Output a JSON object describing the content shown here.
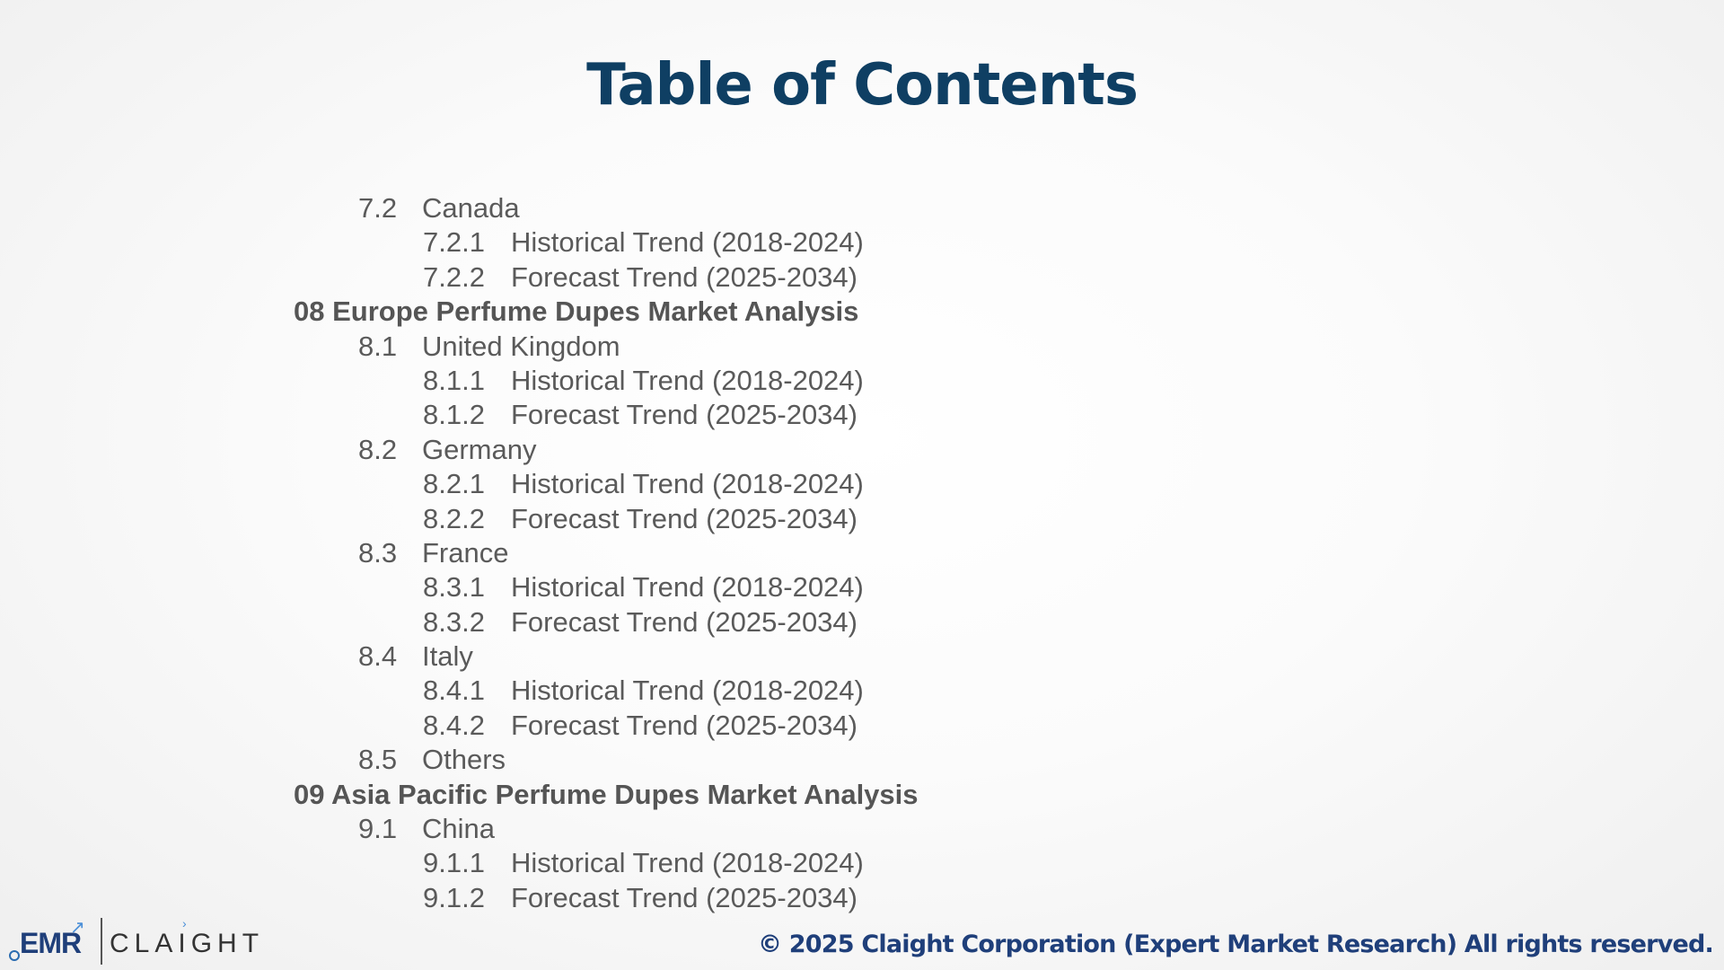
{
  "title": "Table of Contents",
  "toc": [
    {
      "num": "7.2",
      "label": "Canada"
    },
    {
      "num": "7.2.1",
      "label": "Historical Trend (2018-2024)"
    },
    {
      "num": "7.2.2",
      "label": "Forecast Trend (2025-2034)"
    },
    {
      "num": "",
      "label": "08 Europe Perfume Dupes Market Analysis"
    },
    {
      "num": "8.1",
      "label": "United Kingdom"
    },
    {
      "num": "8.1.1",
      "label": "Historical Trend (2018-2024)"
    },
    {
      "num": "8.1.2",
      "label": "Forecast Trend (2025-2034)"
    },
    {
      "num": "8.2",
      "label": "Germany"
    },
    {
      "num": "8.2.1",
      "label": "Historical Trend (2018-2024)"
    },
    {
      "num": "8.2.2",
      "label": "Forecast Trend (2025-2034)"
    },
    {
      "num": "8.3",
      "label": "France"
    },
    {
      "num": "8.3.1",
      "label": "Historical Trend (2018-2024)"
    },
    {
      "num": "8.3.2",
      "label": "Forecast Trend (2025-2034)"
    },
    {
      "num": "8.4",
      "label": "Italy"
    },
    {
      "num": "8.4.1",
      "label": "Historical Trend (2018-2024)"
    },
    {
      "num": "8.4.2",
      "label": "Forecast Trend (2025-2034)"
    },
    {
      "num": "8.5",
      "label": "Others"
    },
    {
      "num": "",
      "label": "09 Asia Pacific Perfume Dupes Market Analysis"
    },
    {
      "num": "9.1",
      "label": "China"
    },
    {
      "num": "9.1.1",
      "label": "Historical Trend (2018-2024)"
    },
    {
      "num": "9.1.2",
      "label": "Forecast Trend (2025-2034)"
    }
  ],
  "logo": {
    "emr": "EMR",
    "claight": "CLAIGHT"
  },
  "footer": {
    "copyright": "© 2025 Claight Corporation (Expert Market Research) All rights reserved."
  },
  "colors": {
    "title": "#0f3f63",
    "body_text": "#5a5a5a",
    "footer_text": "#1f3f7a"
  }
}
